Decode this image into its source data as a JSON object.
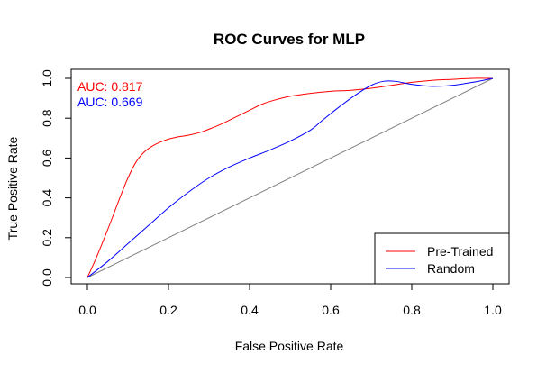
{
  "chart_data": {
    "type": "line",
    "title": "ROC Curves for MLP",
    "xlabel": "False Positive Rate",
    "ylabel": "True Positive Rate",
    "xlim": [
      0,
      1
    ],
    "ylim": [
      0,
      1
    ],
    "xticks": [
      "0.0",
      "0.2",
      "0.4",
      "0.6",
      "0.8",
      "1.0"
    ],
    "yticks": [
      "0.0",
      "0.2",
      "0.4",
      "0.6",
      "0.8",
      "1.0"
    ],
    "grid": false,
    "legend_position": "bottom-right",
    "annotations": [
      {
        "text": "AUC: 0.817",
        "color": "#ff0000"
      },
      {
        "text": "AUC: 0.669",
        "color": "#0000ff"
      }
    ],
    "diagonal": {
      "x": [
        0,
        1
      ],
      "y": [
        0,
        1
      ],
      "color": "#808080"
    },
    "series": [
      {
        "name": "Pre-Trained",
        "color": "#ff0000",
        "x": [
          0.0,
          0.02,
          0.05,
          0.08,
          0.1,
          0.12,
          0.14,
          0.16,
          0.18,
          0.2,
          0.22,
          0.25,
          0.28,
          0.3,
          0.33,
          0.36,
          0.4,
          0.43,
          0.46,
          0.5,
          0.55,
          0.6,
          0.65,
          0.7,
          0.75,
          0.8,
          0.85,
          0.9,
          0.95,
          1.0
        ],
        "y": [
          0.0,
          0.09,
          0.24,
          0.4,
          0.5,
          0.58,
          0.63,
          0.66,
          0.68,
          0.695,
          0.705,
          0.715,
          0.73,
          0.745,
          0.77,
          0.8,
          0.84,
          0.87,
          0.89,
          0.91,
          0.925,
          0.935,
          0.94,
          0.95,
          0.965,
          0.98,
          0.99,
          0.995,
          1.0,
          1.0
        ]
      },
      {
        "name": "Random",
        "color": "#0000ff",
        "x": [
          0.0,
          0.05,
          0.1,
          0.15,
          0.2,
          0.25,
          0.3,
          0.35,
          0.4,
          0.45,
          0.5,
          0.55,
          0.58,
          0.62,
          0.66,
          0.7,
          0.73,
          0.76,
          0.8,
          0.85,
          0.9,
          0.95,
          1.0
        ],
        "y": [
          0.0,
          0.08,
          0.17,
          0.26,
          0.35,
          0.43,
          0.5,
          0.555,
          0.6,
          0.64,
          0.685,
          0.74,
          0.79,
          0.855,
          0.915,
          0.965,
          0.985,
          0.985,
          0.97,
          0.96,
          0.965,
          0.98,
          1.0
        ]
      }
    ]
  }
}
